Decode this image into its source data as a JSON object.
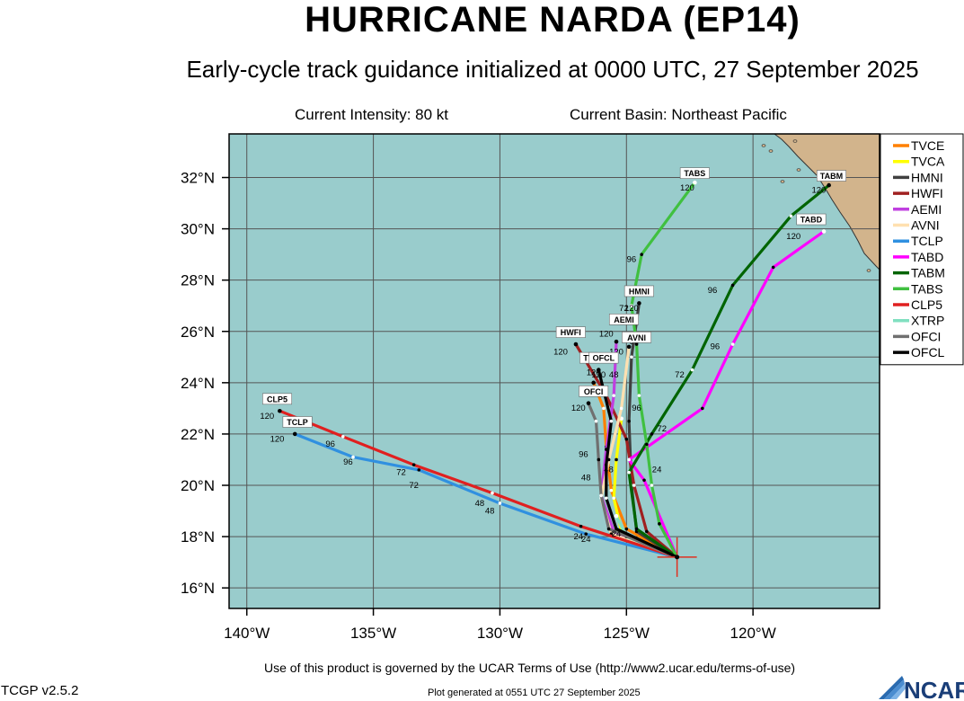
{
  "header": {
    "title": "HURRICANE NARDA (EP14)",
    "subtitle": "Early-cycle track guidance initialized at 0000 UTC, 27 September 2025",
    "intensity": "Current Intensity: 80 kt",
    "basin": "Current Basin: Northeast Pacific"
  },
  "footer": {
    "terms": "Use of this product is governed by the UCAR Terms of Use (http://www2.ucar.edu/terms-of-use)",
    "version": "TCGP v2.5.2",
    "generated": "Plot generated at 0551 UTC   27 September 2025",
    "logo": "NCAR"
  },
  "colors": {
    "ocean": "#99cccc",
    "land": "#d2b48c",
    "grid": "#555555",
    "storm_marker": "#e03020"
  },
  "chart_data": {
    "type": "map",
    "lon_range": [
      -140.7,
      -115.0
    ],
    "lat_range": [
      15.2,
      33.7
    ],
    "lon_ticks": [
      {
        "v": -140,
        "label": "140°W"
      },
      {
        "v": -135,
        "label": "135°W"
      },
      {
        "v": -130,
        "label": "130°W"
      },
      {
        "v": -125,
        "label": "125°W"
      },
      {
        "v": -120,
        "label": "120°W"
      }
    ],
    "lat_ticks": [
      {
        "v": 16,
        "label": "16°N"
      },
      {
        "v": 18,
        "label": "18°N"
      },
      {
        "v": 20,
        "label": "20°N"
      },
      {
        "v": 22,
        "label": "22°N"
      },
      {
        "v": 24,
        "label": "24°N"
      },
      {
        "v": 26,
        "label": "26°N"
      },
      {
        "v": 28,
        "label": "28°N"
      },
      {
        "v": 30,
        "label": "30°N"
      },
      {
        "v": 32,
        "label": "32°N"
      }
    ],
    "grid": true,
    "legend_position": "top-right",
    "storm_position": {
      "lon": -123.0,
      "lat": 17.2
    },
    "tracks": [
      {
        "name": "TVCE",
        "color": "#ff8000",
        "points": [
          [
            -123.0,
            17.2
          ],
          [
            -125.0,
            18.3
          ],
          [
            -125.6,
            19.8
          ],
          [
            -125.8,
            21.5
          ],
          [
            -125.9,
            23.0
          ],
          [
            -126.3,
            24.0
          ]
        ],
        "labels": [
          {
            "lon": -125.4,
            "lat": 18.0,
            "text": "24"
          },
          {
            "lon": -125.7,
            "lat": 20.5,
            "text": "48"
          },
          {
            "lon": -126.3,
            "lat": 24.3,
            "text": "120"
          }
        ],
        "tag": {
          "lon": -126.5,
          "lat": 24.9,
          "text": "TV"
        }
      },
      {
        "name": "TVCA",
        "color": "#ffff00",
        "points": [
          [
            -123.0,
            17.2
          ],
          [
            -125.2,
            18.2
          ],
          [
            -125.5,
            19.5
          ],
          [
            -125.4,
            21.0
          ],
          [
            -125.2,
            22.6
          ]
        ],
        "labels": [],
        "tag": null
      },
      {
        "name": "HMNI",
        "color": "#404040",
        "points": [
          [
            -123.0,
            17.2
          ],
          [
            -124.6,
            18.2
          ],
          [
            -124.8,
            20.0
          ],
          [
            -124.9,
            22.5
          ],
          [
            -124.8,
            25.0
          ],
          [
            -124.5,
            27.1
          ]
        ],
        "labels": [
          {
            "lon": -124.8,
            "lat": 26.8,
            "text": "120"
          }
        ],
        "tag": {
          "lon": -124.5,
          "lat": 27.5,
          "text": "HMNI"
        }
      },
      {
        "name": "HWFI",
        "color": "#a02020",
        "points": [
          [
            -123.0,
            17.2
          ],
          [
            -124.2,
            18.2
          ],
          [
            -124.7,
            20.0
          ],
          [
            -125.0,
            21.8
          ],
          [
            -125.8,
            23.5
          ],
          [
            -127.0,
            25.5
          ]
        ],
        "labels": [
          {
            "lon": -127.6,
            "lat": 25.1,
            "text": "120"
          }
        ],
        "tag": {
          "lon": -127.2,
          "lat": 25.9,
          "text": "HWFI"
        }
      },
      {
        "name": "AEMI",
        "color": "#c040e0",
        "points": [
          [
            -123.0,
            17.2
          ],
          [
            -125.5,
            18.2
          ],
          [
            -126.0,
            19.6
          ],
          [
            -125.8,
            21.4
          ],
          [
            -125.5,
            23.5
          ],
          [
            -125.4,
            25.6
          ]
        ],
        "labels": [
          {
            "lon": -125.8,
            "lat": 25.8,
            "text": "120"
          }
        ],
        "tag": {
          "lon": -125.1,
          "lat": 26.4,
          "text": "AEMI"
        }
      },
      {
        "name": "AVNI",
        "color": "#ffe0b0",
        "points": [
          [
            -123.0,
            17.2
          ],
          [
            -125.6,
            18.1
          ],
          [
            -126.0,
            19.5
          ],
          [
            -125.7,
            21.0
          ],
          [
            -125.2,
            23.0
          ],
          [
            -124.9,
            25.4
          ]
        ],
        "labels": [
          {
            "lon": -125.4,
            "lat": 25.1,
            "text": "120"
          },
          {
            "lon": -124.7,
            "lat": 25.5,
            "text": "96"
          }
        ],
        "tag": {
          "lon": -124.6,
          "lat": 25.7,
          "text": "AVNI"
        }
      },
      {
        "name": "TCLP",
        "color": "#3090e0",
        "points": [
          [
            -123.0,
            17.2
          ],
          [
            -126.6,
            18.1
          ],
          [
            -130.0,
            19.3
          ],
          [
            -133.2,
            20.6
          ],
          [
            -135.8,
            21.1
          ],
          [
            -138.1,
            22.0
          ]
        ],
        "labels": [
          {
            "lon": -126.6,
            "lat": 17.8,
            "text": "24"
          },
          {
            "lon": -130.4,
            "lat": 18.9,
            "text": "48"
          },
          {
            "lon": -133.4,
            "lat": 19.9,
            "text": "72"
          },
          {
            "lon": -136.0,
            "lat": 20.8,
            "text": "96"
          },
          {
            "lon": -138.8,
            "lat": 21.7,
            "text": "120"
          }
        ],
        "tag": {
          "lon": -138.0,
          "lat": 22.4,
          "text": "TCLP"
        }
      },
      {
        "name": "TABD",
        "color": "#ff00ff",
        "points": [
          [
            -123.0,
            17.2
          ],
          [
            -124.3,
            20.2
          ],
          [
            -124.9,
            21.0
          ],
          [
            -122.0,
            23.0
          ],
          [
            -120.8,
            25.5
          ],
          [
            -119.2,
            28.5
          ],
          [
            -117.2,
            29.9
          ]
        ],
        "labels": [
          {
            "lon": -123.6,
            "lat": 22.1,
            "text": "72"
          },
          {
            "lon": -121.5,
            "lat": 25.3,
            "text": "96"
          },
          {
            "lon": -118.4,
            "lat": 29.6,
            "text": "120"
          }
        ],
        "tag": {
          "lon": -117.7,
          "lat": 30.3,
          "text": "TABD"
        }
      },
      {
        "name": "TABM",
        "color": "#006400",
        "points": [
          [
            -123.0,
            17.2
          ],
          [
            -124.6,
            18.3
          ],
          [
            -124.9,
            20.5
          ],
          [
            -124.0,
            22.0
          ],
          [
            -122.4,
            24.5
          ],
          [
            -120.8,
            27.8
          ],
          [
            -118.5,
            30.5
          ],
          [
            -117.0,
            31.7
          ]
        ],
        "labels": [
          {
            "lon": -122.9,
            "lat": 24.2,
            "text": "72"
          },
          {
            "lon": -121.6,
            "lat": 27.5,
            "text": "96"
          },
          {
            "lon": -117.4,
            "lat": 31.4,
            "text": "120"
          }
        ],
        "tag": {
          "lon": -116.9,
          "lat": 32.0,
          "text": "TABM"
        }
      },
      {
        "name": "TABS",
        "color": "#40c040",
        "points": [
          [
            -123.0,
            17.2
          ],
          [
            -123.7,
            18.5
          ],
          [
            -124.0,
            20.0
          ],
          [
            -124.2,
            21.6
          ],
          [
            -124.5,
            23.5
          ],
          [
            -124.6,
            25.5
          ],
          [
            -124.8,
            27.0
          ],
          [
            -124.4,
            29.0
          ],
          [
            -122.3,
            31.8
          ]
        ],
        "labels": [
          {
            "lon": -123.8,
            "lat": 20.5,
            "text": "24"
          },
          {
            "lon": -124.6,
            "lat": 22.9,
            "text": "96"
          },
          {
            "lon": -125.1,
            "lat": 26.8,
            "text": "72"
          },
          {
            "lon": -124.8,
            "lat": 28.7,
            "text": "96"
          },
          {
            "lon": -122.6,
            "lat": 31.5,
            "text": "120"
          }
        ],
        "tag": {
          "lon": -122.3,
          "lat": 32.1,
          "text": "TABS"
        }
      },
      {
        "name": "CLP5",
        "color": "#e02020",
        "points": [
          [
            -123.0,
            17.2
          ],
          [
            -126.8,
            18.4
          ],
          [
            -130.3,
            19.7
          ],
          [
            -133.4,
            20.8
          ],
          [
            -136.2,
            21.9
          ],
          [
            -138.7,
            22.9
          ]
        ],
        "labels": [
          {
            "lon": -126.9,
            "lat": 17.9,
            "text": "24"
          },
          {
            "lon": -130.8,
            "lat": 19.2,
            "text": "48"
          },
          {
            "lon": -133.9,
            "lat": 20.4,
            "text": "72"
          },
          {
            "lon": -136.7,
            "lat": 21.5,
            "text": "96"
          },
          {
            "lon": -139.2,
            "lat": 22.6,
            "text": "120"
          }
        ],
        "tag": {
          "lon": -138.8,
          "lat": 23.3,
          "text": "CLP5"
        }
      },
      {
        "name": "XTRP",
        "color": "#80e0c0",
        "points": [
          [
            -123.0,
            17.2
          ],
          [
            -125.0,
            18.0
          ],
          [
            -125.4,
            18.8
          ]
        ],
        "labels": [],
        "tag": null
      },
      {
        "name": "OFCI",
        "color": "#707070",
        "points": [
          [
            -123.0,
            17.2
          ],
          [
            -125.7,
            18.3
          ],
          [
            -126.0,
            19.6
          ],
          [
            -126.1,
            21.0
          ],
          [
            -126.2,
            22.5
          ],
          [
            -126.5,
            23.2
          ]
        ],
        "labels": [
          {
            "lon": -126.9,
            "lat": 22.9,
            "text": "120"
          },
          {
            "lon": -126.7,
            "lat": 21.1,
            "text": "96"
          },
          {
            "lon": -126.6,
            "lat": 20.2,
            "text": "48"
          }
        ],
        "tag": {
          "lon": -126.3,
          "lat": 23.6,
          "text": "OFCI"
        }
      },
      {
        "name": "OFCL",
        "color": "#000000",
        "points": [
          [
            -123.0,
            17.2
          ],
          [
            -125.4,
            18.3
          ],
          [
            -125.8,
            19.5
          ],
          [
            -125.8,
            20.8
          ],
          [
            -125.6,
            22.5
          ],
          [
            -126.1,
            24.5
          ]
        ],
        "labels": [
          {
            "lon": -126.1,
            "lat": 24.2,
            "text": "120"
          },
          {
            "lon": -125.5,
            "lat": 24.2,
            "text": "48"
          }
        ],
        "tag": {
          "lon": -125.9,
          "lat": 24.9,
          "text": "OFCL"
        }
      }
    ]
  }
}
